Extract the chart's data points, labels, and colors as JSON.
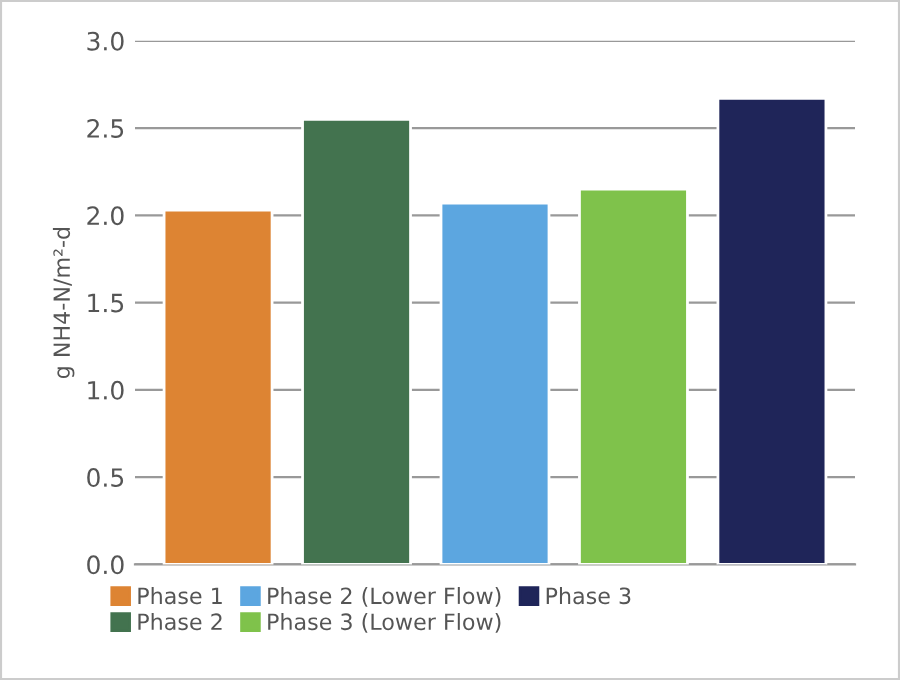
{
  "chart_data": {
    "type": "bar",
    "ylabel": "g NH4-N/m²-d",
    "categories": [
      null,
      null,
      null,
      null,
      null
    ],
    "series": [
      {
        "name": "Phase 1",
        "color": "#dd8433",
        "values": [
          2.03,
          null,
          null,
          null,
          null
        ]
      },
      {
        "name": "Phase 2",
        "color": "#43734f",
        "values": [
          null,
          2.55,
          null,
          null,
          null
        ]
      },
      {
        "name": "Phase 2 (Lower Flow)",
        "color": "#5ca6e0",
        "values": [
          null,
          null,
          2.07,
          null,
          null
        ]
      },
      {
        "name": "Phase 3 (Lower Flow)",
        "color": "#7fc24b",
        "values": [
          null,
          null,
          null,
          2.15,
          null
        ]
      },
      {
        "name": "Phase 3",
        "color": "#1f2559",
        "values": [
          null,
          null,
          null,
          null,
          2.67
        ]
      }
    ],
    "ylim": [
      0,
      3.0
    ],
    "yticks": [
      {
        "value": 0,
        "label": "0.0"
      },
      {
        "value": 0.5,
        "label": "0.5"
      },
      {
        "value": 1.0,
        "label": "1.0"
      },
      {
        "value": 1.5,
        "label": "1.5"
      },
      {
        "value": 2.0,
        "label": "2.0"
      },
      {
        "value": 2.5,
        "label": "2.5"
      },
      {
        "value": 3.0,
        "label": "3.0"
      }
    ],
    "grid": "y",
    "legend": "bottom"
  }
}
